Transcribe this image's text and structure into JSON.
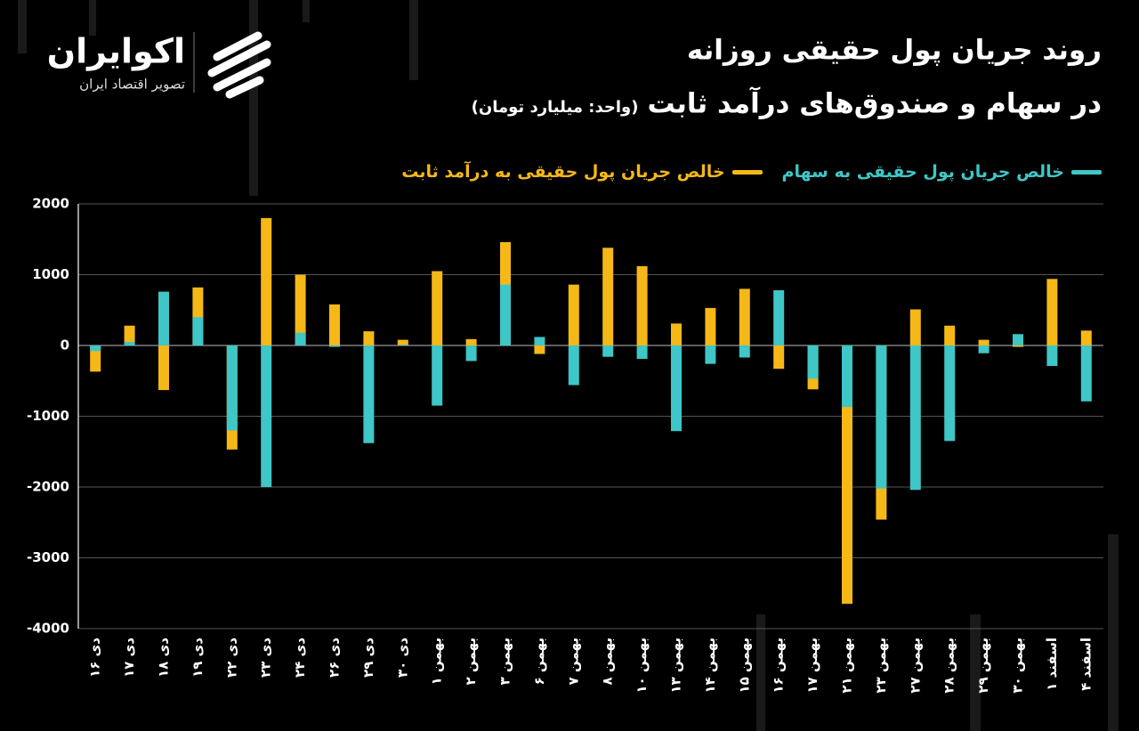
{
  "brand": {
    "name": "اکوایران",
    "tagline": "تصویر اقتصاد ایران"
  },
  "chart_data": {
    "type": "bar",
    "title": "روند جریان پول حقیقی روزانه",
    "subtitle": "در سهام و صندوق‌های درآمد ثابت",
    "unit_note": "(واحد: میلیارد تومان)",
    "categories": [
      "دی ۱۶",
      "دی ۱۷",
      "دی ۱۸",
      "دی ۱۹",
      "دی ۲۲",
      "دی ۲۳",
      "دی ۲۴",
      "دی ۲۶",
      "دی ۲۹",
      "دی ۳۰",
      "بهمن ۱",
      "بهمن ۲",
      "بهمن ۳",
      "بهمن ۶",
      "بهمن ۷",
      "بهمن ۸",
      "بهمن ۱۰",
      "بهمن ۱۳",
      "بهمن ۱۴",
      "بهمن ۱۵",
      "بهمن ۱۶",
      "بهمن ۱۷",
      "بهمن ۲۱",
      "بهمن ۲۳",
      "بهمن ۲۷",
      "بهمن ۲۸",
      "بهمن ۲۹",
      "بهمن ۳۰",
      "اسفند ۱",
      "اسفند ۴"
    ],
    "series": [
      {
        "name": "خالص جریان پول حقیقی به درآمد ثابت",
        "color": "#f5b816",
        "values": [
          -370,
          280,
          -630,
          820,
          -1470,
          1800,
          1000,
          580,
          200,
          80,
          1050,
          90,
          1460,
          -120,
          860,
          1380,
          1120,
          310,
          530,
          800,
          -330,
          -620,
          -3650,
          -2460,
          510,
          280,
          80,
          -20,
          940,
          210
        ]
      },
      {
        "name": "خالص جریان پول حقیقی به سهام",
        "color": "#3fc6c6",
        "values": [
          -80,
          50,
          760,
          400,
          -1200,
          -2000,
          180,
          -20,
          -1380,
          10,
          -850,
          -220,
          860,
          120,
          -560,
          -160,
          -190,
          -1210,
          -260,
          -170,
          780,
          -470,
          -870,
          -2020,
          -2040,
          -1350,
          -110,
          160,
          -290,
          -790
        ]
      }
    ],
    "ylim": [
      -4000,
      2000
    ],
    "yticks": [
      2000,
      1000,
      0,
      -1000,
      -2000,
      -3000,
      -4000
    ],
    "grid": true
  }
}
